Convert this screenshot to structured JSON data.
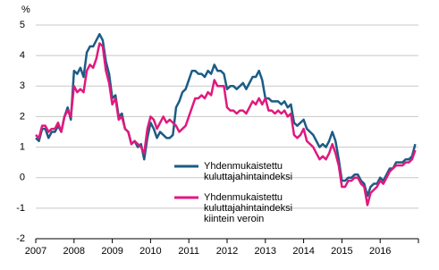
{
  "chart_data": {
    "type": "line",
    "y_label": "%",
    "categories": [
      "2007",
      null,
      null,
      null,
      null,
      null,
      null,
      null,
      null,
      null,
      null,
      null,
      "2008",
      null,
      null,
      null,
      null,
      null,
      null,
      null,
      null,
      null,
      null,
      null,
      "2009",
      null,
      null,
      null,
      null,
      null,
      null,
      null,
      null,
      null,
      null,
      null,
      "2010",
      null,
      null,
      null,
      null,
      null,
      null,
      null,
      null,
      null,
      null,
      null,
      "2011",
      null,
      null,
      null,
      null,
      null,
      null,
      null,
      null,
      null,
      null,
      null,
      "2012",
      null,
      null,
      null,
      null,
      null,
      null,
      null,
      null,
      null,
      null,
      null,
      "2013",
      null,
      null,
      null,
      null,
      null,
      null,
      null,
      null,
      null,
      null,
      null,
      "2014",
      null,
      null,
      null,
      null,
      null,
      null,
      null,
      null,
      null,
      null,
      null,
      "2015",
      null,
      null,
      null,
      null,
      null,
      null,
      null,
      null,
      null,
      null,
      null,
      "2016",
      null,
      null,
      null,
      null,
      null,
      null,
      null,
      null,
      null,
      null,
      null
    ],
    "series": [
      {
        "name": "Yhdenmukaistettu kuluttajahintaindeksi",
        "color": "#1b5c85",
        "values": [
          1.3,
          1.2,
          1.6,
          1.6,
          1.3,
          1.5,
          1.5,
          1.7,
          1.5,
          2.0,
          2.3,
          1.9,
          3.5,
          3.4,
          3.6,
          3.3,
          4.1,
          4.3,
          4.3,
          4.5,
          4.7,
          4.5,
          3.8,
          3.4,
          2.6,
          2.7,
          2.0,
          2.1,
          1.6,
          1.5,
          1.1,
          1.2,
          1.0,
          1.1,
          0.6,
          1.3,
          1.8,
          1.6,
          1.3,
          1.5,
          1.4,
          1.3,
          1.3,
          1.4,
          2.3,
          2.5,
          2.8,
          2.9,
          3.2,
          3.5,
          3.5,
          3.4,
          3.4,
          3.3,
          3.5,
          3.4,
          3.7,
          3.5,
          3.5,
          3.4,
          2.9,
          3.0,
          3.0,
          2.9,
          3.0,
          3.1,
          2.9,
          3.1,
          3.3,
          3.3,
          3.5,
          3.2,
          2.6,
          2.6,
          2.5,
          2.5,
          2.5,
          2.4,
          2.5,
          2.3,
          2.4,
          1.8,
          1.7,
          1.8,
          1.9,
          1.6,
          1.5,
          1.4,
          1.2,
          1.0,
          1.1,
          1.0,
          1.2,
          1.5,
          1.2,
          0.6,
          -0.1,
          -0.1,
          0.0,
          0.0,
          0.1,
          0.1,
          -0.1,
          -0.2,
          -0.6,
          -0.3,
          -0.2,
          -0.2,
          0.0,
          -0.1,
          0.1,
          0.3,
          0.3,
          0.5,
          0.5,
          0.5,
          0.6,
          0.6,
          0.7,
          1.1
        ]
      },
      {
        "name": "Yhdenmukaistettu kuluttajahintaindeksi kiintein veroin",
        "color": "#e0197d",
        "values": [
          1.4,
          1.3,
          1.7,
          1.7,
          1.5,
          1.6,
          1.6,
          1.8,
          1.5,
          2.0,
          2.2,
          2.0,
          3.0,
          2.8,
          2.9,
          2.8,
          3.5,
          3.7,
          3.6,
          3.9,
          4.4,
          4.3,
          3.5,
          3.1,
          2.4,
          2.6,
          1.9,
          2.0,
          1.6,
          1.5,
          1.1,
          1.2,
          1.1,
          1.0,
          0.8,
          1.6,
          2.0,
          1.9,
          1.6,
          1.8,
          2.0,
          1.8,
          1.9,
          1.8,
          1.7,
          1.5,
          1.6,
          1.7,
          2.0,
          2.3,
          2.6,
          2.6,
          2.7,
          2.6,
          2.8,
          2.7,
          3.2,
          3.0,
          3.0,
          3.0,
          2.3,
          2.2,
          2.2,
          2.1,
          2.2,
          2.2,
          2.1,
          2.3,
          2.5,
          2.4,
          2.6,
          2.4,
          2.6,
          2.2,
          2.2,
          2.1,
          2.2,
          2.1,
          2.2,
          2.0,
          2.1,
          1.4,
          1.3,
          1.4,
          1.6,
          1.2,
          1.1,
          1.0,
          0.8,
          0.6,
          0.7,
          0.6,
          0.8,
          1.1,
          0.8,
          0.4,
          -0.3,
          -0.3,
          -0.1,
          -0.1,
          0.0,
          0.0,
          -0.2,
          -0.3,
          -0.9,
          -0.5,
          -0.4,
          -0.3,
          -0.1,
          -0.2,
          0.0,
          0.2,
          0.3,
          0.4,
          0.4,
          0.4,
          0.5,
          0.5,
          0.6,
          0.9
        ]
      }
    ],
    "ylim": [
      -2,
      5
    ],
    "yticks": [
      -2,
      -1,
      0,
      1,
      2,
      3,
      4,
      5
    ],
    "grid": true
  }
}
